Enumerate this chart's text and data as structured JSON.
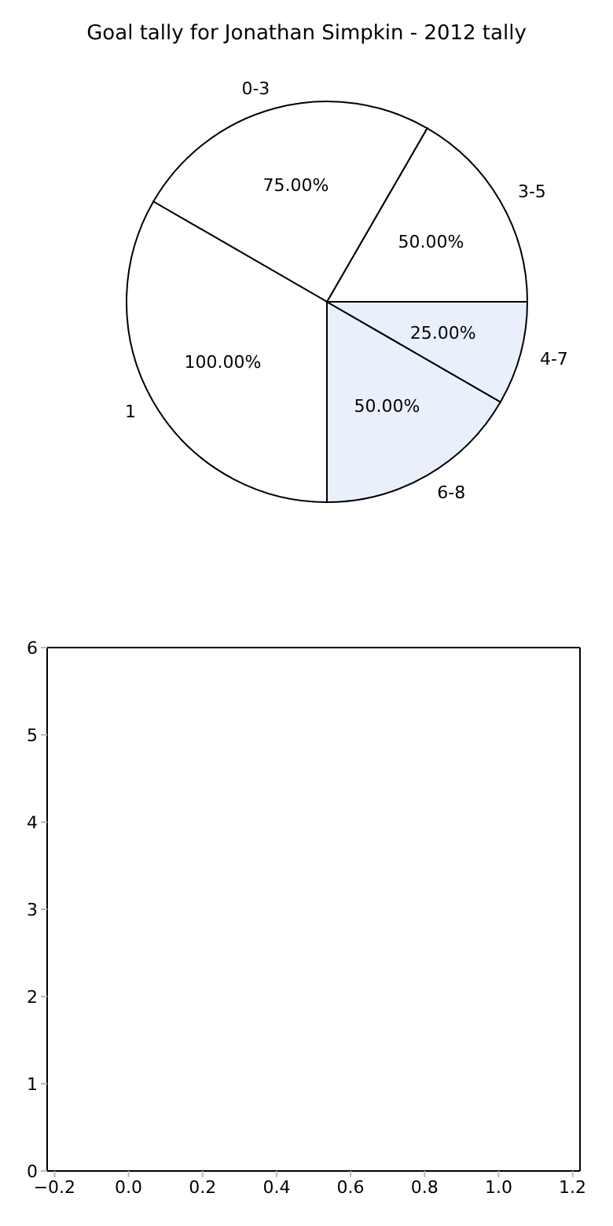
{
  "chart_data": [
    {
      "type": "pie",
      "title": "Goal tally for Jonathan Simpkin - 2012 tally",
      "categories": [
        "3-5",
        "0-3",
        "1",
        "6-8",
        "4-7"
      ],
      "values": [
        50,
        75,
        100,
        50,
        25
      ],
      "value_labels": [
        "50.00%",
        "75.00%",
        "100.00%",
        "50.00%",
        "25.00%"
      ],
      "colors": [
        "#ffffff",
        "#ffffff",
        "#ffffff",
        "#eaf0fb",
        "#eaf0fb"
      ]
    },
    {
      "type": "scatter",
      "xlim": [
        -0.22,
        1.22
      ],
      "xticks": [
        {
          "value": -0.2,
          "label": "−0.2"
        },
        {
          "value": 0,
          "label": "0.0"
        },
        {
          "value": 0.2,
          "label": "0.2"
        },
        {
          "value": 0.4,
          "label": "0.4"
        },
        {
          "value": 0.6,
          "label": "0.6"
        },
        {
          "value": 0.8,
          "label": "0.8"
        },
        {
          "value": 1,
          "label": "1.0"
        },
        {
          "value": 1.2,
          "label": "1.2"
        }
      ],
      "ylim": [
        0,
        6
      ],
      "yticks": [
        0,
        1,
        2,
        3,
        4,
        5,
        6
      ]
    }
  ]
}
